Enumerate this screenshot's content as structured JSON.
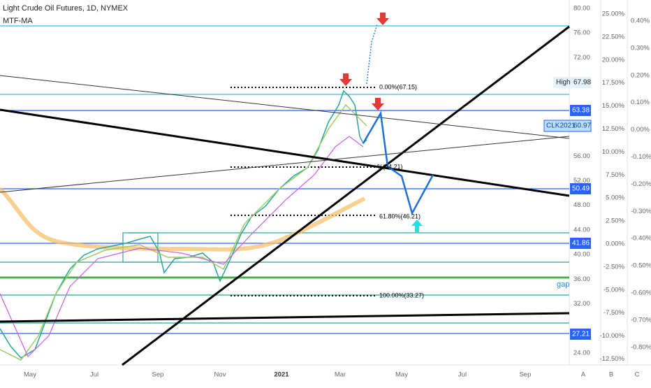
{
  "header": {
    "title": "Light Crude Oil Futures, 1D, NYMEX",
    "indicator": "MTF-MA"
  },
  "price_axis": [
    "80.00",
    "76.00",
    "72.00",
    "56.00",
    "52.00",
    "48.00",
    "44.00",
    "40.00",
    "36.00",
    "32.00",
    "24.00"
  ],
  "percent_axis": [
    "25.00%",
    "22.50%",
    "20.00%",
    "17.50%",
    "15.00%",
    "12.50%",
    "10.00%",
    "7.50%",
    "5.00%",
    "2.50%",
    "0.00%",
    "-2.50%",
    "-5.00%",
    "-7.50%",
    "-10.00%",
    "-12.50%"
  ],
  "percent_axis_2": [
    "0.40%",
    "0.30%",
    "0.20%",
    "0.10%",
    "0.00%",
    "-0.10%",
    "-0.20%",
    "-0.30%",
    "-0.40%",
    "-0.50%",
    "-0.60%",
    "-0.70%",
    "-0.80%"
  ],
  "time_axis": [
    "May",
    "Jul",
    "Sep",
    "Nov",
    "2021",
    "Mar",
    "May",
    "Jul",
    "Sep"
  ],
  "scale_buttons": [
    "A",
    "B",
    "C"
  ],
  "tags": [
    {
      "name": "High",
      "value": "67.98"
    },
    {
      "value": "63.38"
    },
    {
      "name": "CLK2021",
      "value": "60.97"
    },
    {
      "value": "50.49"
    },
    {
      "value": "41.86"
    },
    {
      "value": "27.21"
    }
  ],
  "fib_labels": [
    "0.00%(67.15)",
    "%(54.21)",
    "61.80%(46.21)",
    "100.00%(33.27)"
  ],
  "annotation": "gap"
}
